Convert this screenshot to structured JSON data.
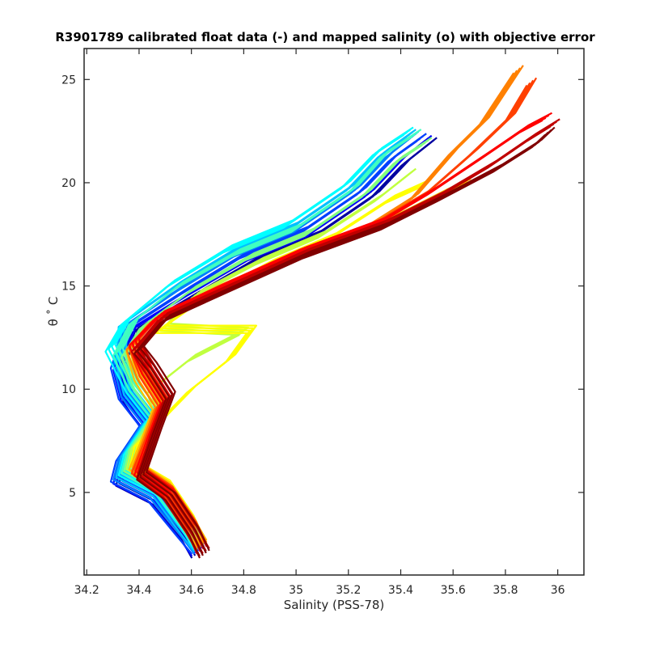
{
  "chart_data": {
    "type": "line",
    "title": "R3901789 calibrated float data (-) and mapped salinity (o) with objective error",
    "xlabel": "Salinity (PSS-78)",
    "ylabel": "θ ˚ C",
    "xlim": [
      34.19,
      36.1
    ],
    "ylim": [
      1.0,
      26.5
    ],
    "xticks": [
      34.2,
      34.4,
      34.6,
      34.8,
      35,
      35.2,
      35.4,
      35.6,
      35.8,
      36
    ],
    "xtick_labels": [
      "34.2",
      "34.4",
      "34.6",
      "34.8",
      "35",
      "35.2",
      "35.4",
      "35.6",
      "35.8",
      "36"
    ],
    "yticks": [
      5,
      10,
      15,
      20,
      25
    ],
    "ytick_labels": [
      "5",
      "10",
      "15",
      "20",
      "25"
    ],
    "grid": false,
    "colormap": [
      "#00008f",
      "#0000ff",
      "#0080ff",
      "#00ffff",
      "#80ff80",
      "#ffff00",
      "#ff8000",
      "#ff0000",
      "#800000"
    ],
    "series": [
      {
        "color": "#0000a0",
        "points": [
          [
            34.62,
            2.0
          ],
          [
            34.58,
            2.9
          ],
          [
            34.47,
            4.6
          ],
          [
            34.33,
            5.5
          ],
          [
            34.35,
            6.5
          ],
          [
            34.43,
            8.2
          ],
          [
            34.36,
            9.5
          ],
          [
            34.33,
            11.0
          ],
          [
            34.38,
            12.8
          ],
          [
            34.62,
            14.6
          ],
          [
            34.85,
            16.3
          ],
          [
            35.08,
            17.5
          ],
          [
            35.3,
            19.4
          ],
          [
            35.42,
            21.0
          ],
          [
            35.52,
            22.0
          ]
        ]
      },
      {
        "color": "#0000ff",
        "points": [
          [
            34.62,
            2.1
          ],
          [
            34.57,
            3.0
          ],
          [
            34.46,
            4.7
          ],
          [
            34.32,
            5.6
          ],
          [
            34.34,
            6.6
          ],
          [
            34.43,
            8.3
          ],
          [
            34.35,
            9.6
          ],
          [
            34.32,
            11.1
          ],
          [
            34.37,
            12.9
          ],
          [
            34.6,
            14.7
          ],
          [
            34.83,
            16.4
          ],
          [
            35.06,
            17.6
          ],
          [
            35.28,
            19.5
          ],
          [
            35.4,
            21.1
          ],
          [
            35.5,
            22.1
          ]
        ]
      },
      {
        "color": "#0040ff",
        "points": [
          [
            34.62,
            2.2
          ],
          [
            34.56,
            3.1
          ],
          [
            34.45,
            4.8
          ],
          [
            34.31,
            5.7
          ],
          [
            34.33,
            6.7
          ],
          [
            34.42,
            8.4
          ],
          [
            34.34,
            9.7
          ],
          [
            34.31,
            11.2
          ],
          [
            34.36,
            13.0
          ],
          [
            34.58,
            14.8
          ],
          [
            34.8,
            16.5
          ],
          [
            35.03,
            17.7
          ],
          [
            35.25,
            19.6
          ],
          [
            35.37,
            21.2
          ],
          [
            35.48,
            22.2
          ]
        ]
      },
      {
        "color": "#0080ff",
        "points": [
          [
            34.63,
            2.2
          ],
          [
            34.57,
            3.2
          ],
          [
            34.46,
            4.9
          ],
          [
            34.32,
            5.8
          ],
          [
            34.34,
            6.8
          ],
          [
            34.43,
            8.5
          ],
          [
            34.35,
            9.8
          ],
          [
            34.32,
            11.3
          ],
          [
            34.35,
            13.1
          ],
          [
            34.56,
            14.9
          ],
          [
            34.78,
            16.6
          ],
          [
            35.01,
            17.8
          ],
          [
            35.23,
            19.7
          ],
          [
            35.35,
            21.3
          ],
          [
            35.45,
            22.3
          ]
        ]
      },
      {
        "color": "#00c0ff",
        "points": [
          [
            34.63,
            2.3
          ],
          [
            34.57,
            3.3
          ],
          [
            34.47,
            5.0
          ],
          [
            34.33,
            5.9
          ],
          [
            34.35,
            6.9
          ],
          [
            34.44,
            8.6
          ],
          [
            34.36,
            9.9
          ],
          [
            34.33,
            11.4
          ],
          [
            34.34,
            13.2
          ],
          [
            34.54,
            15.0
          ],
          [
            34.76,
            16.7
          ],
          [
            34.99,
            17.9
          ],
          [
            35.21,
            19.8
          ],
          [
            35.33,
            21.4
          ],
          [
            35.44,
            22.4
          ]
        ]
      },
      {
        "color": "#00ffff",
        "points": [
          [
            34.63,
            2.4
          ],
          [
            34.58,
            3.4
          ],
          [
            34.48,
            5.1
          ],
          [
            34.34,
            6.0
          ],
          [
            34.36,
            7.0
          ],
          [
            34.45,
            8.7
          ],
          [
            34.37,
            10.0
          ],
          [
            34.29,
            12.0
          ],
          [
            34.35,
            13.3
          ],
          [
            34.52,
            15.1
          ],
          [
            34.74,
            16.8
          ],
          [
            34.97,
            18.0
          ],
          [
            35.19,
            19.9
          ],
          [
            35.31,
            21.5
          ],
          [
            35.43,
            22.5
          ]
        ]
      },
      {
        "color": "#40ffc0",
        "points": [
          [
            34.63,
            2.5
          ],
          [
            34.58,
            3.5
          ],
          [
            34.48,
            5.2
          ],
          [
            34.35,
            6.1
          ],
          [
            34.37,
            7.1
          ],
          [
            34.46,
            8.8
          ],
          [
            34.38,
            10.1
          ],
          [
            34.32,
            11.8
          ],
          [
            34.38,
            13.3
          ],
          [
            34.55,
            15.0
          ],
          [
            34.77,
            16.6
          ],
          [
            35.0,
            17.8
          ],
          [
            35.22,
            19.7
          ],
          [
            35.34,
            21.4
          ],
          [
            35.46,
            22.4
          ]
        ]
      },
      {
        "color": "#80ff80",
        "points": [
          [
            34.63,
            2.5
          ],
          [
            34.59,
            3.6
          ],
          [
            34.49,
            5.3
          ],
          [
            34.36,
            6.2
          ],
          [
            34.38,
            7.2
          ],
          [
            34.47,
            8.9
          ],
          [
            34.4,
            10.2
          ],
          [
            34.35,
            11.7
          ],
          [
            34.42,
            13.1
          ],
          [
            34.6,
            14.8
          ],
          [
            34.82,
            16.4
          ],
          [
            35.05,
            17.6
          ],
          [
            35.27,
            19.5
          ],
          [
            35.39,
            21.1
          ],
          [
            35.5,
            22.0
          ]
        ]
      },
      {
        "color": "#c0ff40",
        "points": [
          [
            34.63,
            2.6
          ],
          [
            34.59,
            3.7
          ],
          [
            34.5,
            5.4
          ],
          [
            34.37,
            6.3
          ],
          [
            34.39,
            7.3
          ],
          [
            34.48,
            8.8
          ],
          [
            34.45,
            10.0
          ],
          [
            34.6,
            11.5
          ],
          [
            34.8,
            12.8
          ],
          [
            34.5,
            13.0
          ],
          [
            34.62,
            14.6
          ],
          [
            34.86,
            16.2
          ],
          [
            35.1,
            17.5
          ],
          [
            35.32,
            19.3
          ],
          [
            35.44,
            20.5
          ]
        ]
      },
      {
        "color": "#ffff00",
        "points": [
          [
            34.63,
            2.6
          ],
          [
            34.59,
            3.7
          ],
          [
            34.5,
            5.4
          ],
          [
            34.38,
            6.3
          ],
          [
            34.4,
            7.4
          ],
          [
            34.5,
            8.7
          ],
          [
            34.6,
            10.0
          ],
          [
            34.75,
            11.5
          ],
          [
            34.83,
            12.9
          ],
          [
            34.48,
            12.9
          ],
          [
            34.66,
            14.5
          ],
          [
            34.9,
            16.1
          ],
          [
            35.14,
            17.4
          ],
          [
            35.36,
            19.2
          ],
          [
            35.5,
            20.0
          ]
        ]
      },
      {
        "color": "#ffc000",
        "points": [
          [
            34.64,
            2.5
          ],
          [
            34.59,
            3.6
          ],
          [
            34.5,
            5.3
          ],
          [
            34.38,
            6.3
          ],
          [
            34.42,
            7.5
          ],
          [
            34.47,
            9.2
          ],
          [
            34.4,
            10.6
          ],
          [
            34.37,
            12.0
          ],
          [
            34.45,
            13.3
          ],
          [
            34.68,
            14.8
          ],
          [
            34.94,
            16.2
          ],
          [
            35.2,
            17.3
          ],
          [
            35.42,
            18.6
          ],
          [
            35.56,
            19.5
          ],
          [
            35.65,
            20.0
          ]
        ]
      },
      {
        "color": "#ff8000",
        "points": [
          [
            34.64,
            2.4
          ],
          [
            34.59,
            3.5
          ],
          [
            34.5,
            5.2
          ],
          [
            34.39,
            6.2
          ],
          [
            34.43,
            7.6
          ],
          [
            34.48,
            9.3
          ],
          [
            34.41,
            10.7
          ],
          [
            34.37,
            12.1
          ],
          [
            34.46,
            13.4
          ],
          [
            34.7,
            14.9
          ],
          [
            34.97,
            16.4
          ],
          [
            35.25,
            17.7
          ],
          [
            35.45,
            19.3
          ],
          [
            35.6,
            21.5
          ],
          [
            35.72,
            23.0
          ],
          [
            35.85,
            25.5
          ]
        ]
      },
      {
        "color": "#ff4000",
        "points": [
          [
            34.64,
            2.3
          ],
          [
            34.6,
            3.4
          ],
          [
            34.51,
            5.1
          ],
          [
            34.39,
            6.1
          ],
          [
            34.44,
            7.7
          ],
          [
            34.49,
            9.4
          ],
          [
            34.42,
            10.8
          ],
          [
            34.38,
            12.2
          ],
          [
            34.47,
            13.5
          ],
          [
            34.72,
            15.0
          ],
          [
            35.0,
            16.6
          ],
          [
            35.3,
            18.0
          ],
          [
            35.5,
            19.5
          ],
          [
            35.68,
            21.5
          ],
          [
            35.82,
            23.2
          ],
          [
            35.9,
            24.9
          ]
        ]
      },
      {
        "color": "#ff0000",
        "points": [
          [
            34.64,
            2.2
          ],
          [
            34.6,
            3.3
          ],
          [
            34.51,
            5.0
          ],
          [
            34.4,
            6.0
          ],
          [
            34.45,
            7.8
          ],
          [
            34.5,
            9.5
          ],
          [
            34.43,
            10.9
          ],
          [
            34.38,
            12.3
          ],
          [
            34.48,
            13.6
          ],
          [
            34.74,
            15.1
          ],
          [
            35.02,
            16.7
          ],
          [
            35.32,
            18.1
          ],
          [
            35.52,
            19.6
          ],
          [
            35.72,
            21.3
          ],
          [
            35.87,
            22.6
          ],
          [
            35.96,
            23.2
          ]
        ]
      },
      {
        "color": "#c00000",
        "points": [
          [
            34.65,
            2.1
          ],
          [
            34.6,
            3.2
          ],
          [
            34.51,
            4.9
          ],
          [
            34.41,
            5.9
          ],
          [
            34.46,
            7.9
          ],
          [
            34.51,
            9.6
          ],
          [
            34.44,
            11.0
          ],
          [
            34.39,
            12.0
          ],
          [
            34.49,
            13.5
          ],
          [
            34.75,
            15.0
          ],
          [
            35.03,
            16.6
          ],
          [
            35.33,
            18.0
          ],
          [
            35.55,
            19.4
          ],
          [
            35.75,
            20.9
          ],
          [
            35.9,
            22.2
          ],
          [
            35.99,
            22.9
          ]
        ]
      },
      {
        "color": "#800000",
        "points": [
          [
            34.65,
            2.0
          ],
          [
            34.61,
            3.1
          ],
          [
            34.52,
            4.8
          ],
          [
            34.41,
            5.8
          ],
          [
            34.47,
            8.0
          ],
          [
            34.52,
            9.7
          ],
          [
            34.45,
            11.1
          ],
          [
            34.4,
            11.9
          ],
          [
            34.5,
            13.4
          ],
          [
            34.76,
            14.9
          ],
          [
            35.04,
            16.5
          ],
          [
            35.34,
            17.9
          ],
          [
            35.56,
            19.3
          ],
          [
            35.77,
            20.7
          ],
          [
            35.92,
            21.9
          ],
          [
            35.97,
            22.5
          ]
        ]
      }
    ]
  }
}
